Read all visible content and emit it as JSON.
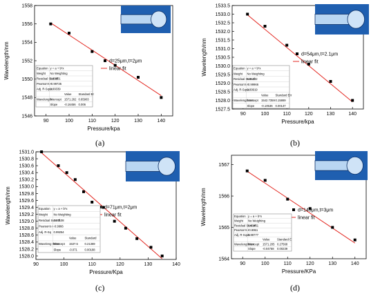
{
  "chart_data": [
    {
      "type": "scatter",
      "panel_label": "(a)",
      "xlabel": "Pressure/kpa",
      "ylabel": "Wavelength/nm",
      "xlim": [
        85,
        145
      ],
      "ylim": [
        1546,
        1558
      ],
      "xticks": [
        "90",
        "100",
        "110",
        "120",
        "130",
        "140"
      ],
      "yticks": [
        "1546",
        "1548",
        "1550",
        "1552",
        "1554",
        "1556",
        "1558"
      ],
      "series": [
        {
          "name": "d=25μm,t=2μm",
          "x": [
            92,
            100,
            110,
            120,
            130,
            140
          ],
          "y": [
            1556.0,
            1555.0,
            1553.0,
            1551.5,
            1550.2,
            1548.0
          ]
        },
        {
          "name": "linear fit",
          "x": [
            92,
            140
          ],
          "y": [
            1556.11,
            1548.21
          ]
        }
      ],
      "stats_table": {
        "rows": [
          [
            "Equation",
            "y = a + b*x",
            ""
          ],
          [
            "Weight",
            "No Weighting",
            ""
          ],
          [
            "Residual Sum of",
            "0.23801",
            ""
          ],
          [
            "Pearson's r",
            "-0.99735",
            ""
          ],
          [
            "Adj. R-Squa",
            "0.99339",
            ""
          ],
          [
            "",
            "Value",
            "Standard Er"
          ],
          [
            "Wavelength",
            "Intercept",
            "1571.262",
            "0.65903"
          ],
          [
            "",
            "Slope",
            "-0.16456",
            "0.006"
          ]
        ]
      }
    },
    {
      "type": "scatter",
      "panel_label": "(b)",
      "xlabel": "Pressure/kpa",
      "ylabel": "Wavelength/nm",
      "xlim": [
        85,
        145
      ],
      "ylim": [
        1527.5,
        1533.5
      ],
      "xticks": [
        "90",
        "100",
        "110",
        "120",
        "130",
        "140"
      ],
      "yticks": [
        "1527.5",
        "1528.0",
        "1528.5",
        "1529.0",
        "1529.5",
        "1530.0",
        "1530.5",
        "1531.0",
        "1531.5",
        "1532.0",
        "1532.5",
        "1533.0",
        "1533.5"
      ],
      "series": [
        {
          "name": "d=54μm,t=2.1μm",
          "x": [
            92,
            100,
            110,
            120,
            130,
            140
          ],
          "y": [
            1533.0,
            1532.3,
            1531.2,
            1530.1,
            1529.1,
            1528.0
          ]
        },
        {
          "name": "linear fit",
          "x": [
            92,
            140
          ],
          "y": [
            1532.96,
            1527.91
          ]
        }
      ],
      "stats_table": {
        "rows": [
          [
            "Equation",
            "y = a + b*x",
            ""
          ],
          [
            "Weight",
            "No Weighting",
            ""
          ],
          [
            "Residual Sum of",
            "0.01232",
            ""
          ],
          [
            "Pearson's r",
            "-0.99966",
            ""
          ],
          [
            "Adj. R-Squa",
            "0.99919",
            ""
          ],
          [
            "",
            "Value",
            "Standard Err"
          ],
          [
            "Wavelength nm",
            "Intercept",
            "1542.7359",
            "0.15869"
          ],
          [
            "",
            "Slope",
            "-0.10536",
            "0.00137"
          ]
        ]
      }
    },
    {
      "type": "scatter",
      "panel_label": "(c)",
      "xlabel": "Pressure/Kpa",
      "ylabel": "Wavelength/nm",
      "xlim": [
        90,
        140
      ],
      "ylim": [
        1527.9,
        1531.0
      ],
      "xticks": [
        "90",
        "100",
        "110",
        "120",
        "130",
        "140"
      ],
      "yticks": [
        "1528.0",
        "1528.2",
        "1528.4",
        "1528.6",
        "1528.8",
        "1529.0",
        "1529.2",
        "1529.4",
        "1529.6",
        "1529.8",
        "1530.0",
        "1530.2",
        "1530.4",
        "1530.6",
        "1530.8",
        "1531.0"
      ],
      "series": [
        {
          "name": "d=71μm,t=2μm",
          "x": [
            92,
            98,
            101,
            104,
            107,
            110,
            114,
            118,
            122,
            126,
            131,
            135
          ],
          "y": [
            1531.0,
            1530.6,
            1530.4,
            1530.2,
            1529.85,
            1529.55,
            1529.4,
            1529.0,
            1528.8,
            1528.5,
            1528.25,
            1528.0
          ]
        },
        {
          "name": "linear fit",
          "x": [
            92,
            135
          ],
          "y": [
            1530.97,
            1527.92
          ]
        }
      ],
      "stats_table": {
        "rows": [
          [
            "Equation",
            "y = a + b*x",
            ""
          ],
          [
            "Weight",
            "No Weighting",
            ""
          ],
          [
            "Residual Sum of",
            "0.07108",
            ""
          ],
          [
            "Pearson's r",
            "-0.9966",
            ""
          ],
          [
            "Adj. R-Sq",
            "0.99254",
            ""
          ],
          [
            "",
            "Value",
            "Standard"
          ],
          [
            "Waveleng th/nm",
            "Intercept",
            "1537.5",
            "0.21369"
          ],
          [
            "",
            "Slope",
            "-0.071",
            "0.00188"
          ]
        ]
      }
    },
    {
      "type": "scatter",
      "panel_label": "(d)",
      "xlabel": "Pressure/KPa",
      "ylabel": "Wavelength/nm",
      "xlim": [
        85,
        145
      ],
      "ylim": [
        1564,
        1567.3
      ],
      "xticks": [
        "90",
        "100",
        "110",
        "120",
        "130",
        "140"
      ],
      "yticks": [
        "1564",
        "1565",
        "1566",
        "1567"
      ],
      "series": [
        {
          "name": "d=145μm,t=3μm",
          "x": [
            92,
            100,
            110,
            120,
            130,
            140
          ],
          "y": [
            1566.8,
            1566.5,
            1565.9,
            1565.6,
            1565.0,
            1564.6
          ]
        },
        {
          "name": "linear fit",
          "x": [
            92,
            140
          ],
          "y": [
            1566.79,
            1564.5
          ]
        }
      ],
      "stats_table": {
        "rows": [
          [
            "Equation",
            "y = a + b*x",
            ""
          ],
          [
            "Weight",
            "No Weighting",
            ""
          ],
          [
            "Residual Sum of",
            "0.03461",
            ""
          ],
          [
            "Pearson's r",
            "-0.9951",
            ""
          ],
          [
            "Adj. R-Squa",
            "0.98777",
            ""
          ],
          [
            "",
            "Value",
            "Standard E"
          ],
          [
            "Wavelength/nm",
            "Intercept",
            "1571.205",
            "0.27568"
          ],
          [
            "",
            "Slope",
            "-0.04758",
            "0.00239"
          ]
        ]
      }
    }
  ],
  "colors": {
    "fit_line": "#e3261f",
    "marker": "#000000",
    "inset_background": "#1f5fb0"
  }
}
